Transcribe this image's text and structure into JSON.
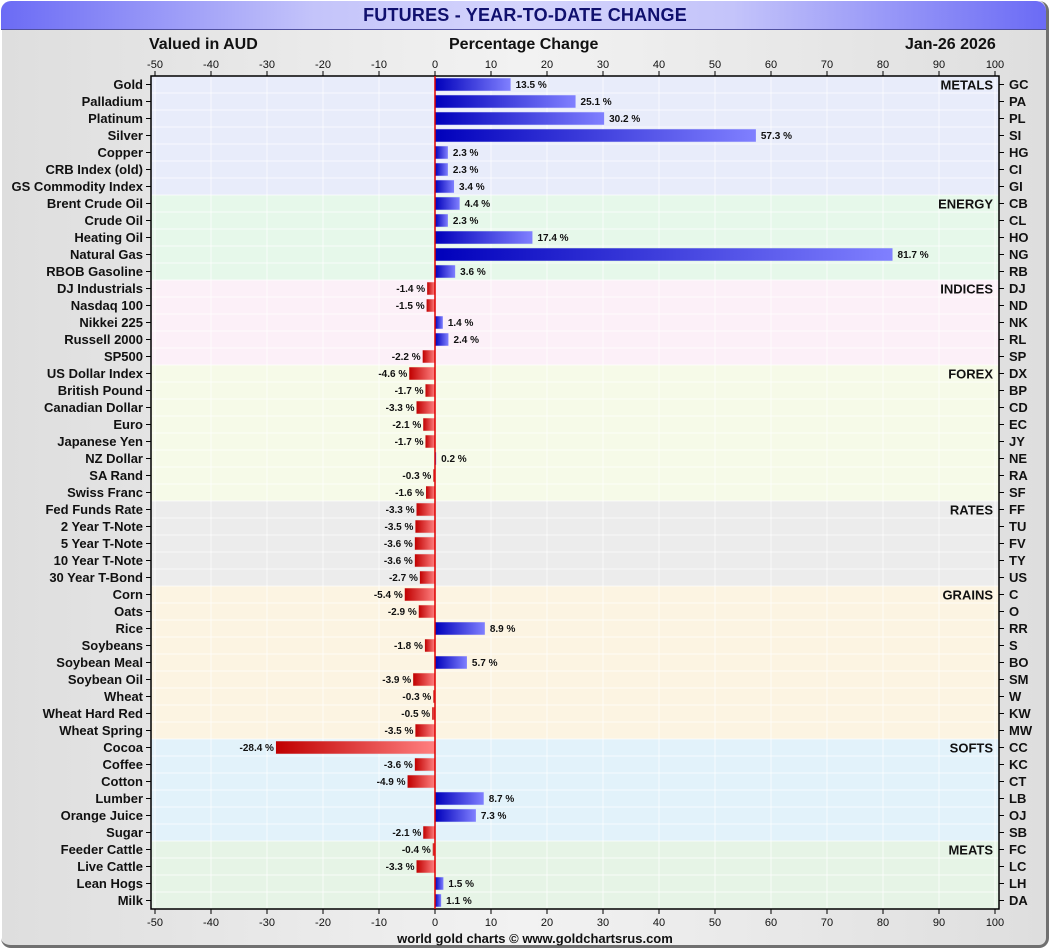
{
  "header": {
    "title": "FUTURES - YEAR-TO-DATE CHANGE",
    "left": "Valued in AUD",
    "center": "Percentage Change",
    "date": "Jan-26  2026"
  },
  "footer": "world gold charts © www.goldchartsrus.com",
  "colors": {
    "positive_dark": "#0000bb",
    "positive_light": "#8080ff",
    "negative_dark": "#c00000",
    "negative_light": "#ff8080",
    "zero_line": "#dd0000"
  },
  "chart_data": {
    "type": "bar",
    "orientation": "horizontal",
    "title": "FUTURES - YEAR-TO-DATE CHANGE",
    "xlabel": "Percentage Change",
    "xlim": [
      -50,
      100
    ],
    "xticks": [
      -50,
      -40,
      -30,
      -20,
      -10,
      0,
      10,
      20,
      30,
      40,
      50,
      60,
      70,
      80,
      90,
      100
    ],
    "grid": true,
    "value_suffix": " %",
    "groups": [
      {
        "name": "METALS",
        "bg": "#e8ecfa",
        "rows": [
          {
            "label": "Gold",
            "code": "GC",
            "value": 13.5
          },
          {
            "label": "Palladium",
            "code": "PA",
            "value": 25.1
          },
          {
            "label": "Platinum",
            "code": "PL",
            "value": 30.2
          },
          {
            "label": "Silver",
            "code": "SI",
            "value": 57.3
          },
          {
            "label": "Copper",
            "code": "HG",
            "value": 2.3
          },
          {
            "label": "CRB Index (old)",
            "code": "CI",
            "value": 2.3
          },
          {
            "label": "GS Commodity Index",
            "code": "GI",
            "value": 3.4
          }
        ]
      },
      {
        "name": "ENERGY",
        "bg": "#e6f8ea",
        "rows": [
          {
            "label": "Brent Crude Oil",
            "code": "CB",
            "value": 4.4
          },
          {
            "label": "Crude Oil",
            "code": "CL",
            "value": 2.3
          },
          {
            "label": "Heating Oil",
            "code": "HO",
            "value": 17.4
          },
          {
            "label": "Natural Gas",
            "code": "NG",
            "value": 81.7
          },
          {
            "label": "RBOB Gasoline",
            "code": "RB",
            "value": 3.6
          }
        ]
      },
      {
        "name": "INDICES",
        "bg": "#fcf0f8",
        "rows": [
          {
            "label": "DJ Industrials",
            "code": "DJ",
            "value": -1.4
          },
          {
            "label": "Nasdaq 100",
            "code": "ND",
            "value": -1.5
          },
          {
            "label": "Nikkei 225",
            "code": "NK",
            "value": 1.4
          },
          {
            "label": "Russell 2000",
            "code": "RL",
            "value": 2.4
          },
          {
            "label": "SP500",
            "code": "SP",
            "value": -2.2
          }
        ]
      },
      {
        "name": "FOREX",
        "bg": "#f6fae8",
        "rows": [
          {
            "label": "US Dollar Index",
            "code": "DX",
            "value": -4.6
          },
          {
            "label": "British Pound",
            "code": "BP",
            "value": -1.7
          },
          {
            "label": "Canadian Dollar",
            "code": "CD",
            "value": -3.3
          },
          {
            "label": "Euro",
            "code": "EC",
            "value": -2.1
          },
          {
            "label": "Japanese Yen",
            "code": "JY",
            "value": -1.7
          },
          {
            "label": "NZ Dollar",
            "code": "NE",
            "value": 0.2
          },
          {
            "label": "SA Rand",
            "code": "RA",
            "value": -0.3
          },
          {
            "label": "Swiss Franc",
            "code": "SF",
            "value": -1.6
          }
        ]
      },
      {
        "name": "RATES",
        "bg": "#ececec",
        "rows": [
          {
            "label": "Fed Funds Rate",
            "code": "FF",
            "value": -3.3
          },
          {
            "label": "2 Year T-Note",
            "code": "TU",
            "value": -3.5
          },
          {
            "label": "5 Year T-Note",
            "code": "FV",
            "value": -3.6
          },
          {
            "label": "10 Year T-Note",
            "code": "TY",
            "value": -3.6
          },
          {
            "label": "30 Year T-Bond",
            "code": "US",
            "value": -2.7
          }
        ]
      },
      {
        "name": "GRAINS",
        "bg": "#fcf4e2",
        "rows": [
          {
            "label": "Corn",
            "code": "C",
            "value": -5.4
          },
          {
            "label": "Oats",
            "code": "O",
            "value": -2.9
          },
          {
            "label": "Rice",
            "code": "RR",
            "value": 8.9
          },
          {
            "label": "Soybeans",
            "code": "S",
            "value": -1.8
          },
          {
            "label": "Soybean Meal",
            "code": "BO",
            "value": 5.7
          },
          {
            "label": "Soybean Oil",
            "code": "SM",
            "value": -3.9
          },
          {
            "label": "Wheat",
            "code": "W",
            "value": -0.3
          },
          {
            "label": "Wheat Hard Red",
            "code": "KW",
            "value": -0.5
          },
          {
            "label": "Wheat Spring",
            "code": "MW",
            "value": -3.5
          }
        ]
      },
      {
        "name": "SOFTS",
        "bg": "#e2f2fa",
        "rows": [
          {
            "label": "Cocoa",
            "code": "CC",
            "value": -28.4
          },
          {
            "label": "Coffee",
            "code": "KC",
            "value": -3.6
          },
          {
            "label": "Cotton",
            "code": "CT",
            "value": -4.9
          },
          {
            "label": "Lumber",
            "code": "LB",
            "value": 8.7
          },
          {
            "label": "Orange Juice",
            "code": "OJ",
            "value": 7.3
          },
          {
            "label": "Sugar",
            "code": "SB",
            "value": -2.1
          }
        ]
      },
      {
        "name": "MEATS",
        "bg": "#e6f4e6",
        "rows": [
          {
            "label": "Feeder Cattle",
            "code": "FC",
            "value": -0.4
          },
          {
            "label": "Live Cattle",
            "code": "LC",
            "value": -3.3
          },
          {
            "label": "Lean Hogs",
            "code": "LH",
            "value": 1.5
          },
          {
            "label": "Milk",
            "code": "DA",
            "value": 1.1
          }
        ]
      }
    ]
  }
}
